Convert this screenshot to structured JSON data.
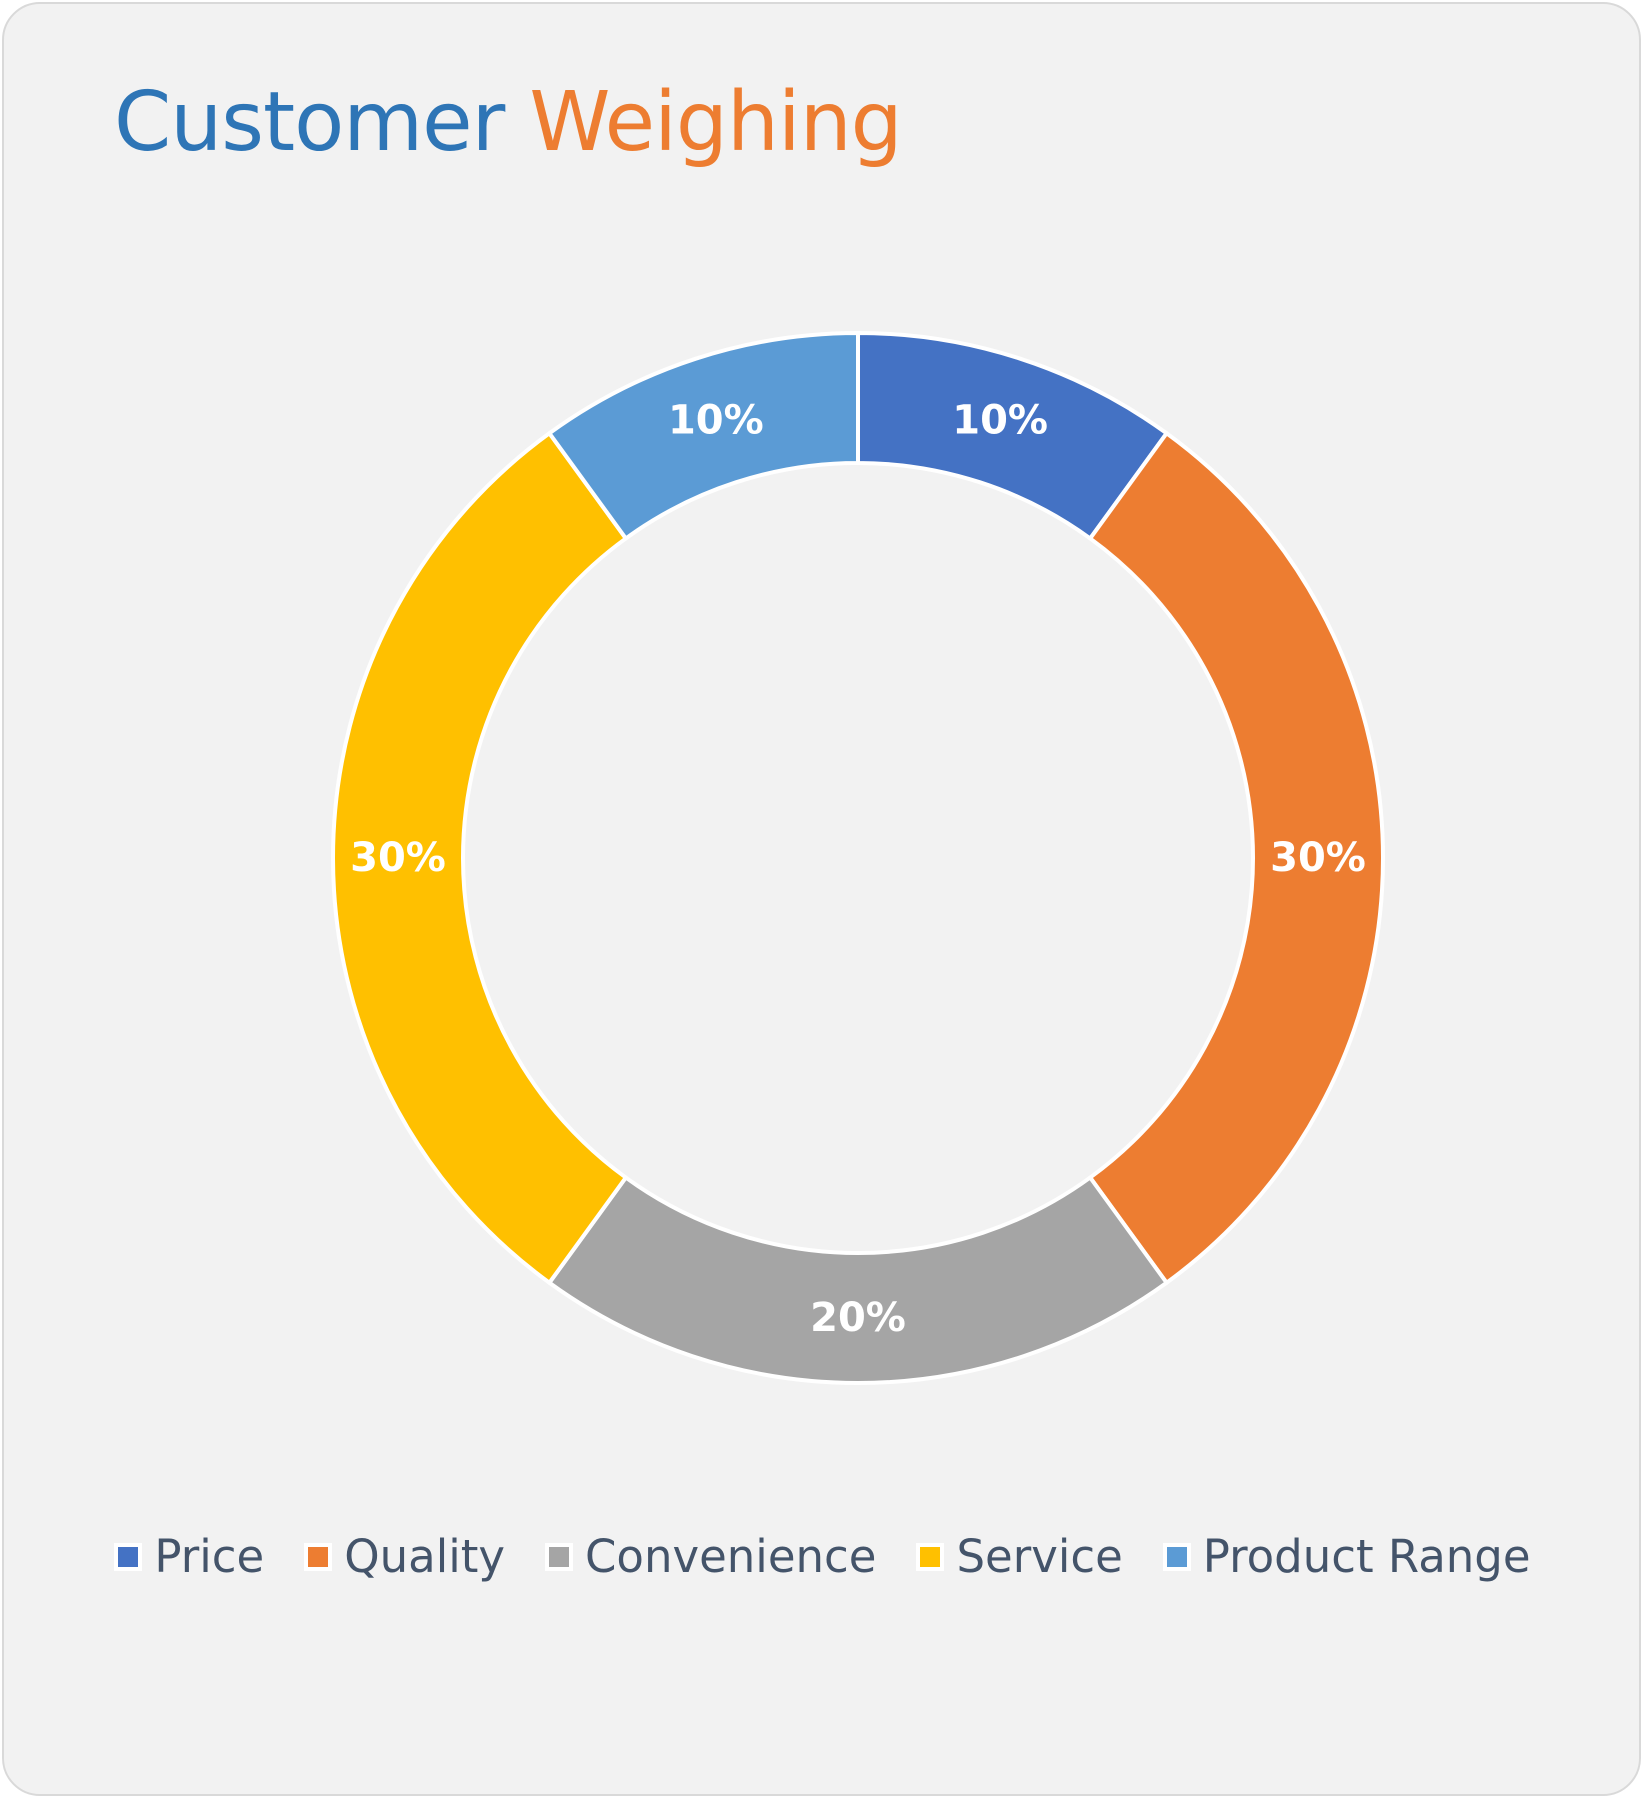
{
  "chart_data": {
    "type": "pie",
    "subtype": "doughnut",
    "title_parts": [
      "Customer",
      "Weighing"
    ],
    "title_colors": [
      "#2e75b6",
      "#ed7d31"
    ],
    "slices": [
      {
        "label": "Price",
        "value": 10,
        "display": "10%",
        "color": "#4472c4"
      },
      {
        "label": "Quality",
        "value": 30,
        "display": "30%",
        "color": "#ed7d31"
      },
      {
        "label": "Convenience",
        "value": 20,
        "display": "20%",
        "color": "#a5a5a5"
      },
      {
        "label": "Service",
        "value": 30,
        "display": "30%",
        "color": "#ffc000"
      },
      {
        "label": "Product Range",
        "value": 10,
        "display": "10%",
        "color": "#5b9bd5"
      }
    ],
    "legend_position": "bottom"
  }
}
